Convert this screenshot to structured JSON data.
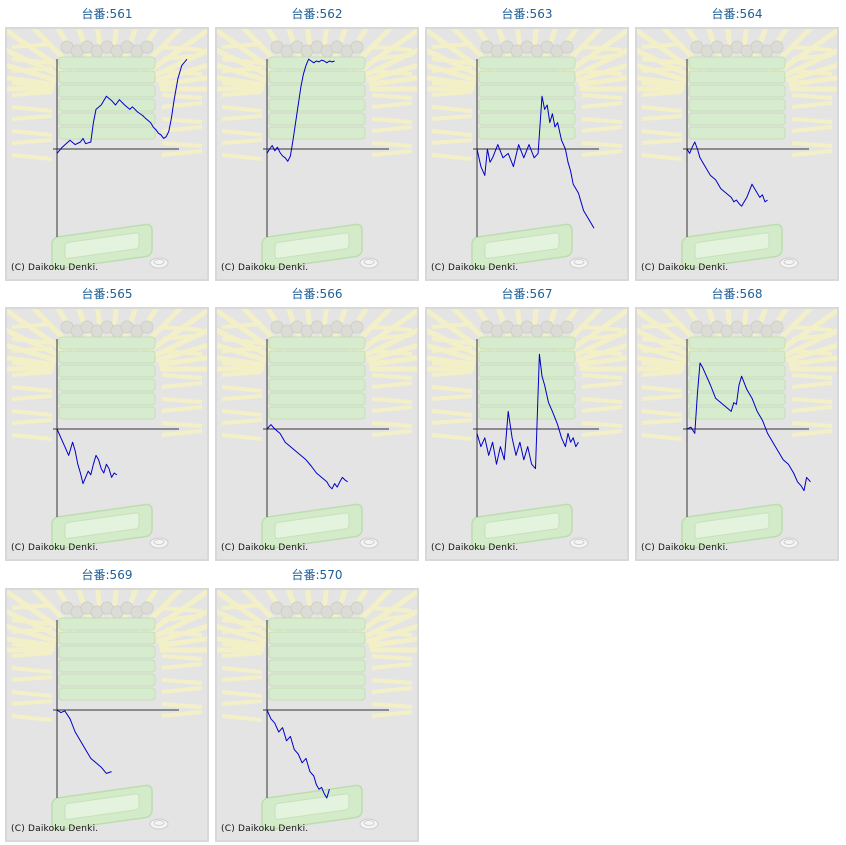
{
  "copyright": "(C) Daikoku Denki.",
  "colors": {
    "line": "#0000c8",
    "axis": "#000000",
    "title": "#1f5f96",
    "panel_bg": "#e4e4e4"
  },
  "chart_data": [
    {
      "type": "line",
      "title": "台番:561",
      "x": [
        0,
        0.04,
        0.1,
        0.14,
        0.18,
        0.2,
        0.22,
        0.26,
        0.28,
        0.3,
        0.34,
        0.38,
        0.42,
        0.45,
        0.48,
        0.52,
        0.56,
        0.58,
        0.62,
        0.66,
        0.68,
        0.72,
        0.74,
        0.76,
        0.78,
        0.8,
        0.82,
        0.84,
        0.86,
        0.88,
        0.9,
        0.93,
        0.96,
        1.0
      ],
      "y": [
        -0.05,
        0.02,
        0.1,
        0.05,
        0.08,
        0.12,
        0.06,
        0.08,
        0.3,
        0.45,
        0.5,
        0.6,
        0.55,
        0.5,
        0.56,
        0.5,
        0.45,
        0.48,
        0.42,
        0.38,
        0.35,
        0.3,
        0.25,
        0.22,
        0.18,
        0.16,
        0.12,
        0.14,
        0.2,
        0.35,
        0.55,
        0.8,
        0.95,
        1.02
      ]
    },
    {
      "type": "line",
      "title": "台番:562",
      "x": [
        0,
        0.02,
        0.04,
        0.06,
        0.08,
        0.1,
        0.12,
        0.14,
        0.16,
        0.18,
        0.2,
        0.22,
        0.24,
        0.26,
        0.28,
        0.3,
        0.32,
        0.34,
        0.36,
        0.38,
        0.4,
        0.42,
        0.44,
        0.46,
        0.48,
        0.5,
        0.52
      ],
      "y": [
        -0.05,
        0.0,
        0.04,
        -0.02,
        0.02,
        -0.04,
        -0.08,
        -0.1,
        -0.14,
        -0.08,
        0.1,
        0.3,
        0.5,
        0.7,
        0.85,
        0.95,
        1.02,
        1.0,
        0.98,
        1.0,
        0.99,
        1.01,
        1.0,
        0.98,
        1.0,
        0.99,
        1.0
      ]
    },
    {
      "type": "line",
      "title": "台番:563",
      "x": [
        0,
        0.03,
        0.06,
        0.08,
        0.1,
        0.12,
        0.16,
        0.2,
        0.24,
        0.28,
        0.32,
        0.36,
        0.4,
        0.44,
        0.47,
        0.5,
        0.52,
        0.54,
        0.56,
        0.58,
        0.6,
        0.62,
        0.65,
        0.68,
        0.7,
        0.72,
        0.74,
        0.76,
        0.78,
        0.8,
        0.82,
        0.84,
        0.86,
        0.88,
        0.9
      ],
      "y": [
        0.0,
        -0.2,
        -0.3,
        0.0,
        -0.15,
        -0.1,
        0.05,
        -0.1,
        -0.05,
        -0.2,
        0.05,
        -0.1,
        0.05,
        -0.1,
        -0.05,
        0.6,
        0.45,
        0.5,
        0.3,
        0.4,
        0.25,
        0.3,
        0.1,
        0.0,
        -0.15,
        -0.25,
        -0.4,
        -0.45,
        -0.5,
        -0.6,
        -0.7,
        -0.75,
        -0.8,
        -0.85,
        -0.9
      ]
    },
    {
      "type": "line",
      "title": "台番:564",
      "x": [
        0,
        0.02,
        0.04,
        0.06,
        0.08,
        0.1,
        0.14,
        0.18,
        0.22,
        0.26,
        0.3,
        0.34,
        0.36,
        0.38,
        0.4,
        0.42,
        0.44,
        0.46,
        0.5,
        0.52,
        0.54,
        0.56,
        0.58,
        0.6,
        0.62
      ],
      "y": [
        0.0,
        -0.05,
        0.02,
        0.08,
        0.0,
        -0.1,
        -0.2,
        -0.3,
        -0.35,
        -0.45,
        -0.5,
        -0.55,
        -0.6,
        -0.58,
        -0.62,
        -0.65,
        -0.6,
        -0.55,
        -0.4,
        -0.45,
        -0.5,
        -0.55,
        -0.52,
        -0.6,
        -0.58
      ]
    },
    {
      "type": "line",
      "title": "台番:565",
      "x": [
        0,
        0.03,
        0.06,
        0.09,
        0.12,
        0.14,
        0.16,
        0.18,
        0.2,
        0.22,
        0.24,
        0.26,
        0.28,
        0.3,
        0.32,
        0.34,
        0.36,
        0.38,
        0.4,
        0.42,
        0.44,
        0.46
      ],
      "y": [
        0.0,
        -0.1,
        -0.2,
        -0.3,
        -0.15,
        -0.25,
        -0.4,
        -0.5,
        -0.62,
        -0.55,
        -0.48,
        -0.52,
        -0.4,
        -0.3,
        -0.35,
        -0.45,
        -0.5,
        -0.4,
        -0.45,
        -0.55,
        -0.5,
        -0.52
      ]
    },
    {
      "type": "line",
      "title": "台番:566",
      "x": [
        0,
        0.03,
        0.06,
        0.1,
        0.14,
        0.18,
        0.22,
        0.26,
        0.3,
        0.34,
        0.38,
        0.42,
        0.46,
        0.48,
        0.5,
        0.52,
        0.54,
        0.56,
        0.58,
        0.6,
        0.62
      ],
      "y": [
        0.0,
        0.05,
        0.0,
        -0.05,
        -0.15,
        -0.2,
        -0.25,
        -0.3,
        -0.35,
        -0.42,
        -0.5,
        -0.55,
        -0.6,
        -0.65,
        -0.68,
        -0.62,
        -0.66,
        -0.6,
        -0.55,
        -0.58,
        -0.6
      ]
    },
    {
      "type": "line",
      "title": "台番:567",
      "x": [
        0,
        0.03,
        0.06,
        0.09,
        0.12,
        0.15,
        0.18,
        0.21,
        0.24,
        0.27,
        0.3,
        0.33,
        0.36,
        0.39,
        0.42,
        0.45,
        0.48,
        0.5,
        0.52,
        0.55,
        0.58,
        0.62,
        0.65,
        0.68,
        0.7,
        0.72,
        0.74,
        0.76,
        0.78
      ],
      "y": [
        -0.05,
        -0.2,
        -0.1,
        -0.3,
        -0.15,
        -0.4,
        -0.2,
        -0.35,
        0.2,
        -0.1,
        -0.3,
        -0.15,
        -0.35,
        -0.2,
        -0.4,
        -0.45,
        0.85,
        0.6,
        0.5,
        0.3,
        0.2,
        0.05,
        -0.1,
        -0.2,
        -0.05,
        -0.15,
        -0.1,
        -0.2,
        -0.15
      ]
    },
    {
      "type": "line",
      "title": "台番:568",
      "x": [
        0,
        0.03,
        0.06,
        0.08,
        0.1,
        0.12,
        0.15,
        0.18,
        0.22,
        0.26,
        0.3,
        0.34,
        0.36,
        0.38,
        0.4,
        0.42,
        0.46,
        0.5,
        0.54,
        0.58,
        0.62,
        0.66,
        0.7,
        0.74,
        0.78,
        0.82,
        0.85,
        0.88,
        0.9,
        0.92,
        0.95
      ],
      "y": [
        0.0,
        0.02,
        -0.05,
        0.4,
        0.75,
        0.7,
        0.6,
        0.5,
        0.35,
        0.3,
        0.25,
        0.2,
        0.3,
        0.28,
        0.5,
        0.6,
        0.45,
        0.35,
        0.2,
        0.1,
        -0.05,
        -0.15,
        -0.25,
        -0.35,
        -0.4,
        -0.5,
        -0.6,
        -0.65,
        -0.7,
        -0.55,
        -0.6
      ]
    },
    {
      "type": "line",
      "title": "台番:569",
      "x": [
        0,
        0.03,
        0.06,
        0.1,
        0.14,
        0.18,
        0.22,
        0.26,
        0.3,
        0.34,
        0.38,
        0.42
      ],
      "y": [
        0.0,
        -0.03,
        -0.01,
        -0.1,
        -0.25,
        -0.35,
        -0.45,
        -0.55,
        -0.6,
        -0.65,
        -0.72,
        -0.7
      ]
    },
    {
      "type": "line",
      "title": "台番:570",
      "x": [
        0,
        0.03,
        0.06,
        0.09,
        0.12,
        0.15,
        0.18,
        0.21,
        0.24,
        0.27,
        0.3,
        0.33,
        0.36,
        0.38,
        0.4,
        0.42,
        0.44,
        0.46,
        0.48
      ],
      "y": [
        0.0,
        -0.1,
        -0.15,
        -0.25,
        -0.2,
        -0.35,
        -0.3,
        -0.45,
        -0.5,
        -0.6,
        -0.55,
        -0.7,
        -0.75,
        -0.85,
        -0.9,
        -0.88,
        -0.95,
        -1.0,
        -0.9
      ]
    }
  ]
}
